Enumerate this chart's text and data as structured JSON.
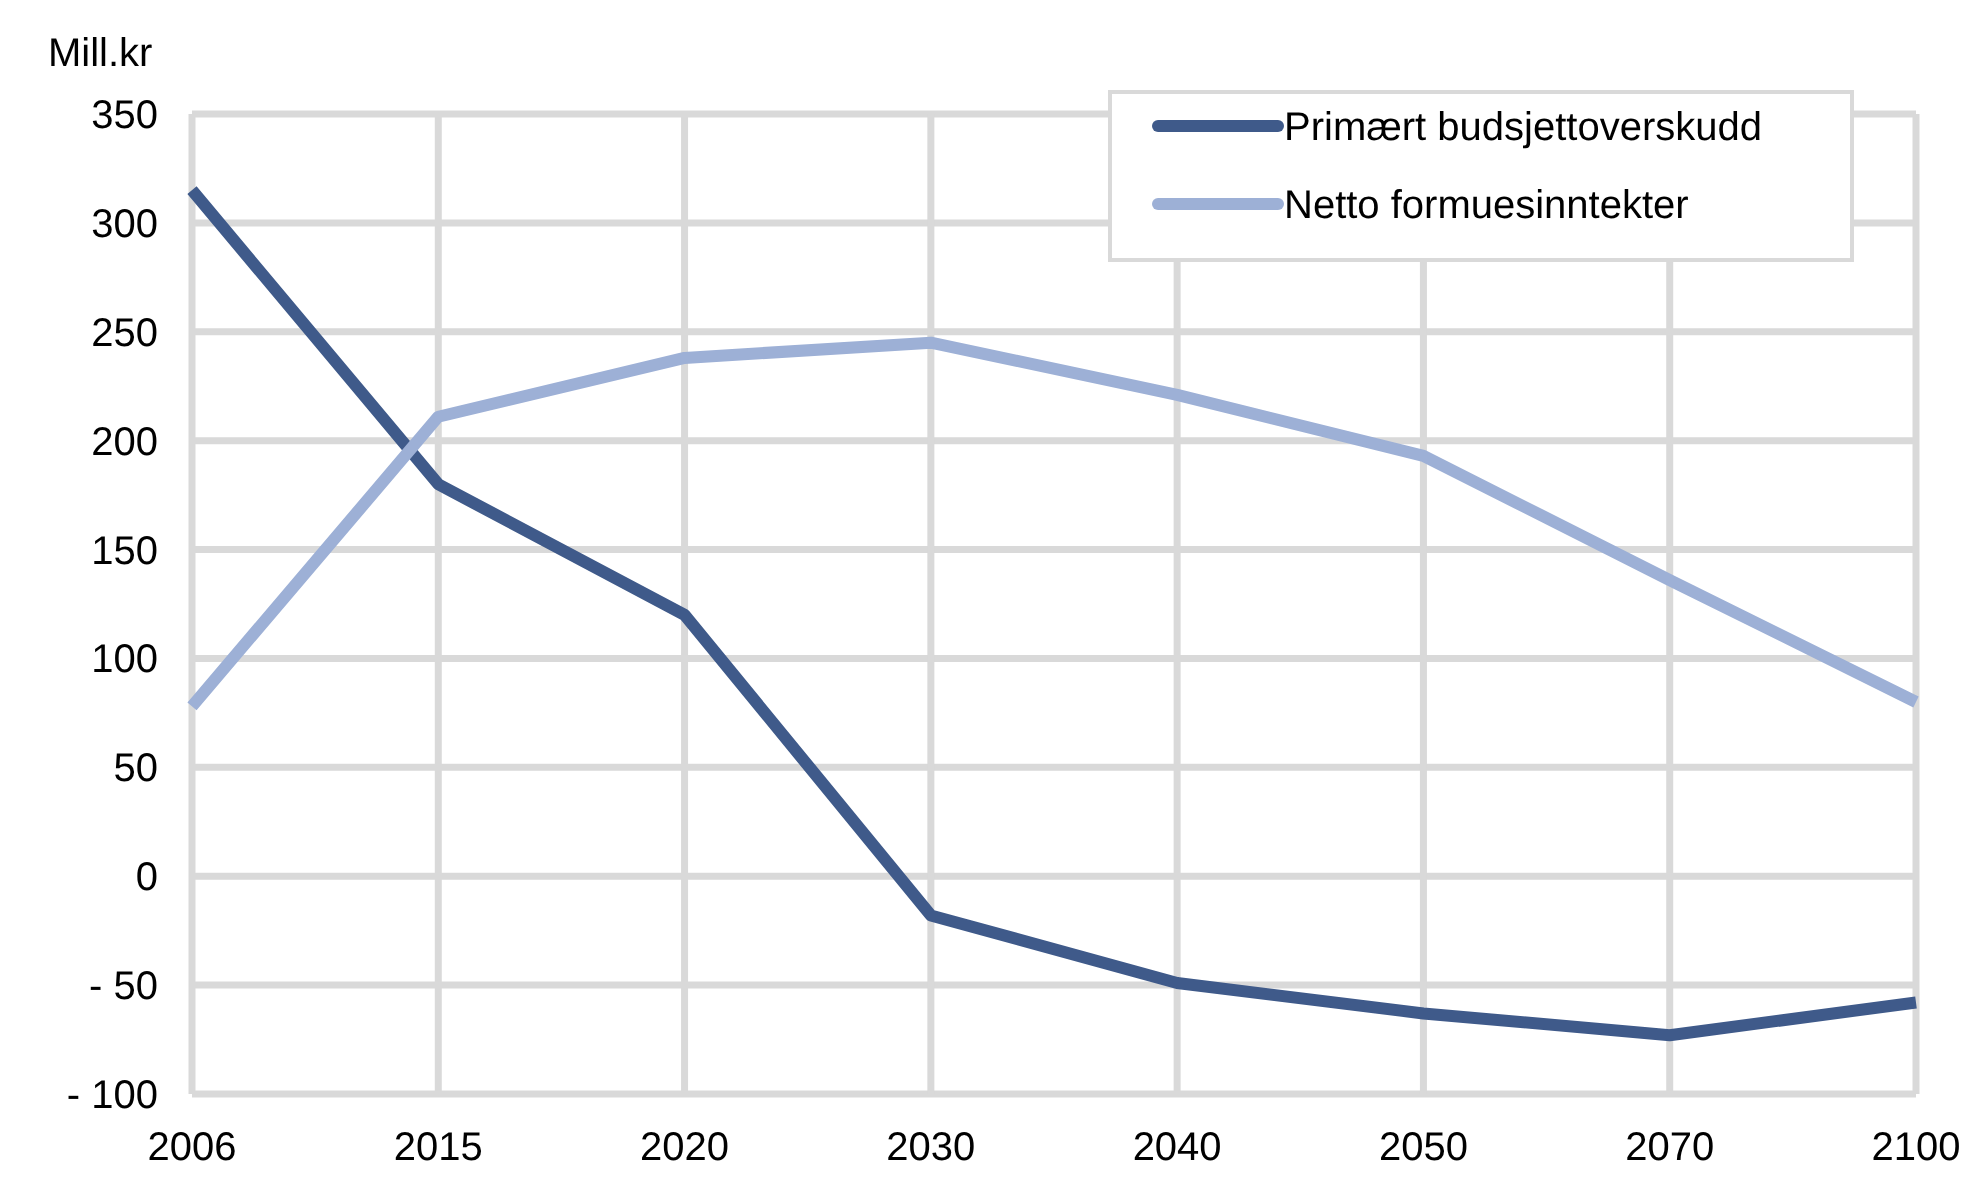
{
  "chart_data": {
    "type": "line",
    "ylabel": "Mill.kr",
    "categories": [
      "2006",
      "2015",
      "2020",
      "2030",
      "2040",
      "2050",
      "2070",
      "2100"
    ],
    "series": [
      {
        "name": "Primært budsjettoverskudd",
        "color": "#3f5a8a",
        "values": [
          315,
          180,
          120,
          -18,
          -49,
          -63,
          -73,
          -58
        ]
      },
      {
        "name": "Netto formuesinntekter",
        "color": "#9db0d6",
        "values": [
          78,
          211,
          238,
          245,
          221,
          193,
          136,
          80
        ]
      }
    ],
    "ylim": [
      -100,
      350
    ],
    "yticks": [
      {
        "value": -100,
        "label": "- 100"
      },
      {
        "value": -50,
        "label": "- 50"
      },
      0,
      50,
      100,
      150,
      200,
      250,
      300,
      350
    ],
    "grid": true,
    "legend": "top right",
    "marker": "none",
    "line_style": "solid"
  }
}
